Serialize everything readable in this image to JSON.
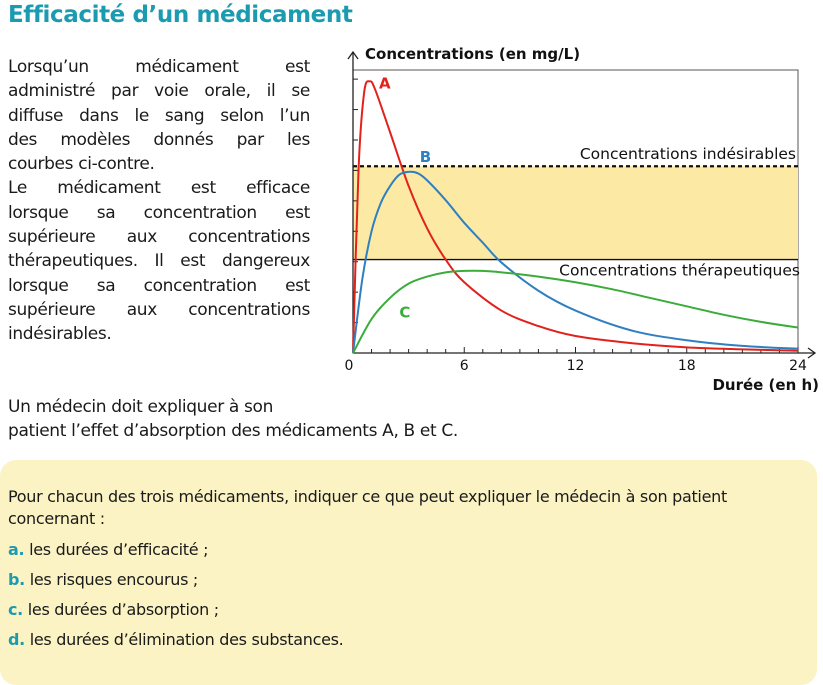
{
  "title": "Efficacité d’un médicament",
  "intro_lines": [
    "Lorsqu’un médicament est",
    "administré par voie orale, il se",
    "diffuse dans le sang selon l’un",
    "des modèles donnés par les",
    "courbes ci-contre.",
    "Le médicament est efficace",
    "lorsque sa concentration est",
    "supérieure aux concentrations",
    "thérapeutiques. Il est dangereux",
    "lorsque sa concentration est",
    "supérieure aux concentrations",
    "indésirables."
  ],
  "tail_lines": [
    "Un médecin doit expliquer à son",
    "patient l’effet d’absorption des médicaments A, B et C."
  ],
  "question": "Pour chacun des trois médicaments, indiquer ce que peut expliquer le médecin à son patient concernant :",
  "items": [
    {
      "letter": "a.",
      "text": "les durées d’efficacité ;"
    },
    {
      "letter": "b.",
      "text": "les risques encourus ;"
    },
    {
      "letter": "c.",
      "text": "les durées d’absorption ;"
    },
    {
      "letter": "d.",
      "text": "les durées d’élimination des substances."
    }
  ],
  "colors": {
    "accent": "#1a9bb0",
    "band": "#fbe9a4",
    "box": "#fbf3c4",
    "curveA": "#e2211c",
    "curveB": "#2f7fc1",
    "curveC": "#3aac3a"
  },
  "chart_data": {
    "type": "line",
    "ylabel": "Concentrations (en mg/L)",
    "xlabel": "Durée (en h)",
    "x_ticks": [
      "0",
      "6",
      "12",
      "18",
      "24"
    ],
    "xlim": [
      0,
      24
    ],
    "ylim": [
      0,
      10
    ],
    "thresholds": [
      {
        "name": "Concentrations indésirables",
        "value": 6.6,
        "style": "dashed"
      },
      {
        "name": "Concentrations thérapeutiques",
        "value": 3.3,
        "style": "solid"
      }
    ],
    "series": [
      {
        "name": "A",
        "x": [
          0,
          0.3,
          0.6,
          0.9,
          1.2,
          2,
          3,
          4,
          5,
          6,
          8,
          10,
          12,
          15,
          18,
          21,
          24
        ],
        "values": [
          0,
          6.5,
          9.2,
          9.6,
          9.3,
          7.8,
          5.9,
          4.4,
          3.3,
          2.5,
          1.5,
          0.95,
          0.6,
          0.35,
          0.2,
          0.13,
          0.08
        ]
      },
      {
        "name": "B",
        "x": [
          0,
          0.5,
          1,
          1.5,
          2,
          2.5,
          3,
          3.5,
          4,
          5,
          6,
          7,
          8,
          10,
          12,
          15,
          18,
          21,
          24
        ],
        "values": [
          0,
          2.6,
          4.3,
          5.3,
          5.9,
          6.3,
          6.4,
          6.35,
          6.1,
          5.4,
          4.6,
          3.9,
          3.2,
          2.2,
          1.5,
          0.8,
          0.45,
          0.25,
          0.15
        ]
      },
      {
        "name": "C",
        "x": [
          0,
          1,
          2,
          3,
          4,
          5,
          6,
          7,
          8,
          10,
          12,
          14,
          16,
          18,
          20,
          22,
          24
        ],
        "values": [
          0,
          1.2,
          1.95,
          2.45,
          2.7,
          2.85,
          2.9,
          2.9,
          2.85,
          2.7,
          2.5,
          2.25,
          1.95,
          1.65,
          1.35,
          1.1,
          0.9
        ]
      }
    ]
  }
}
